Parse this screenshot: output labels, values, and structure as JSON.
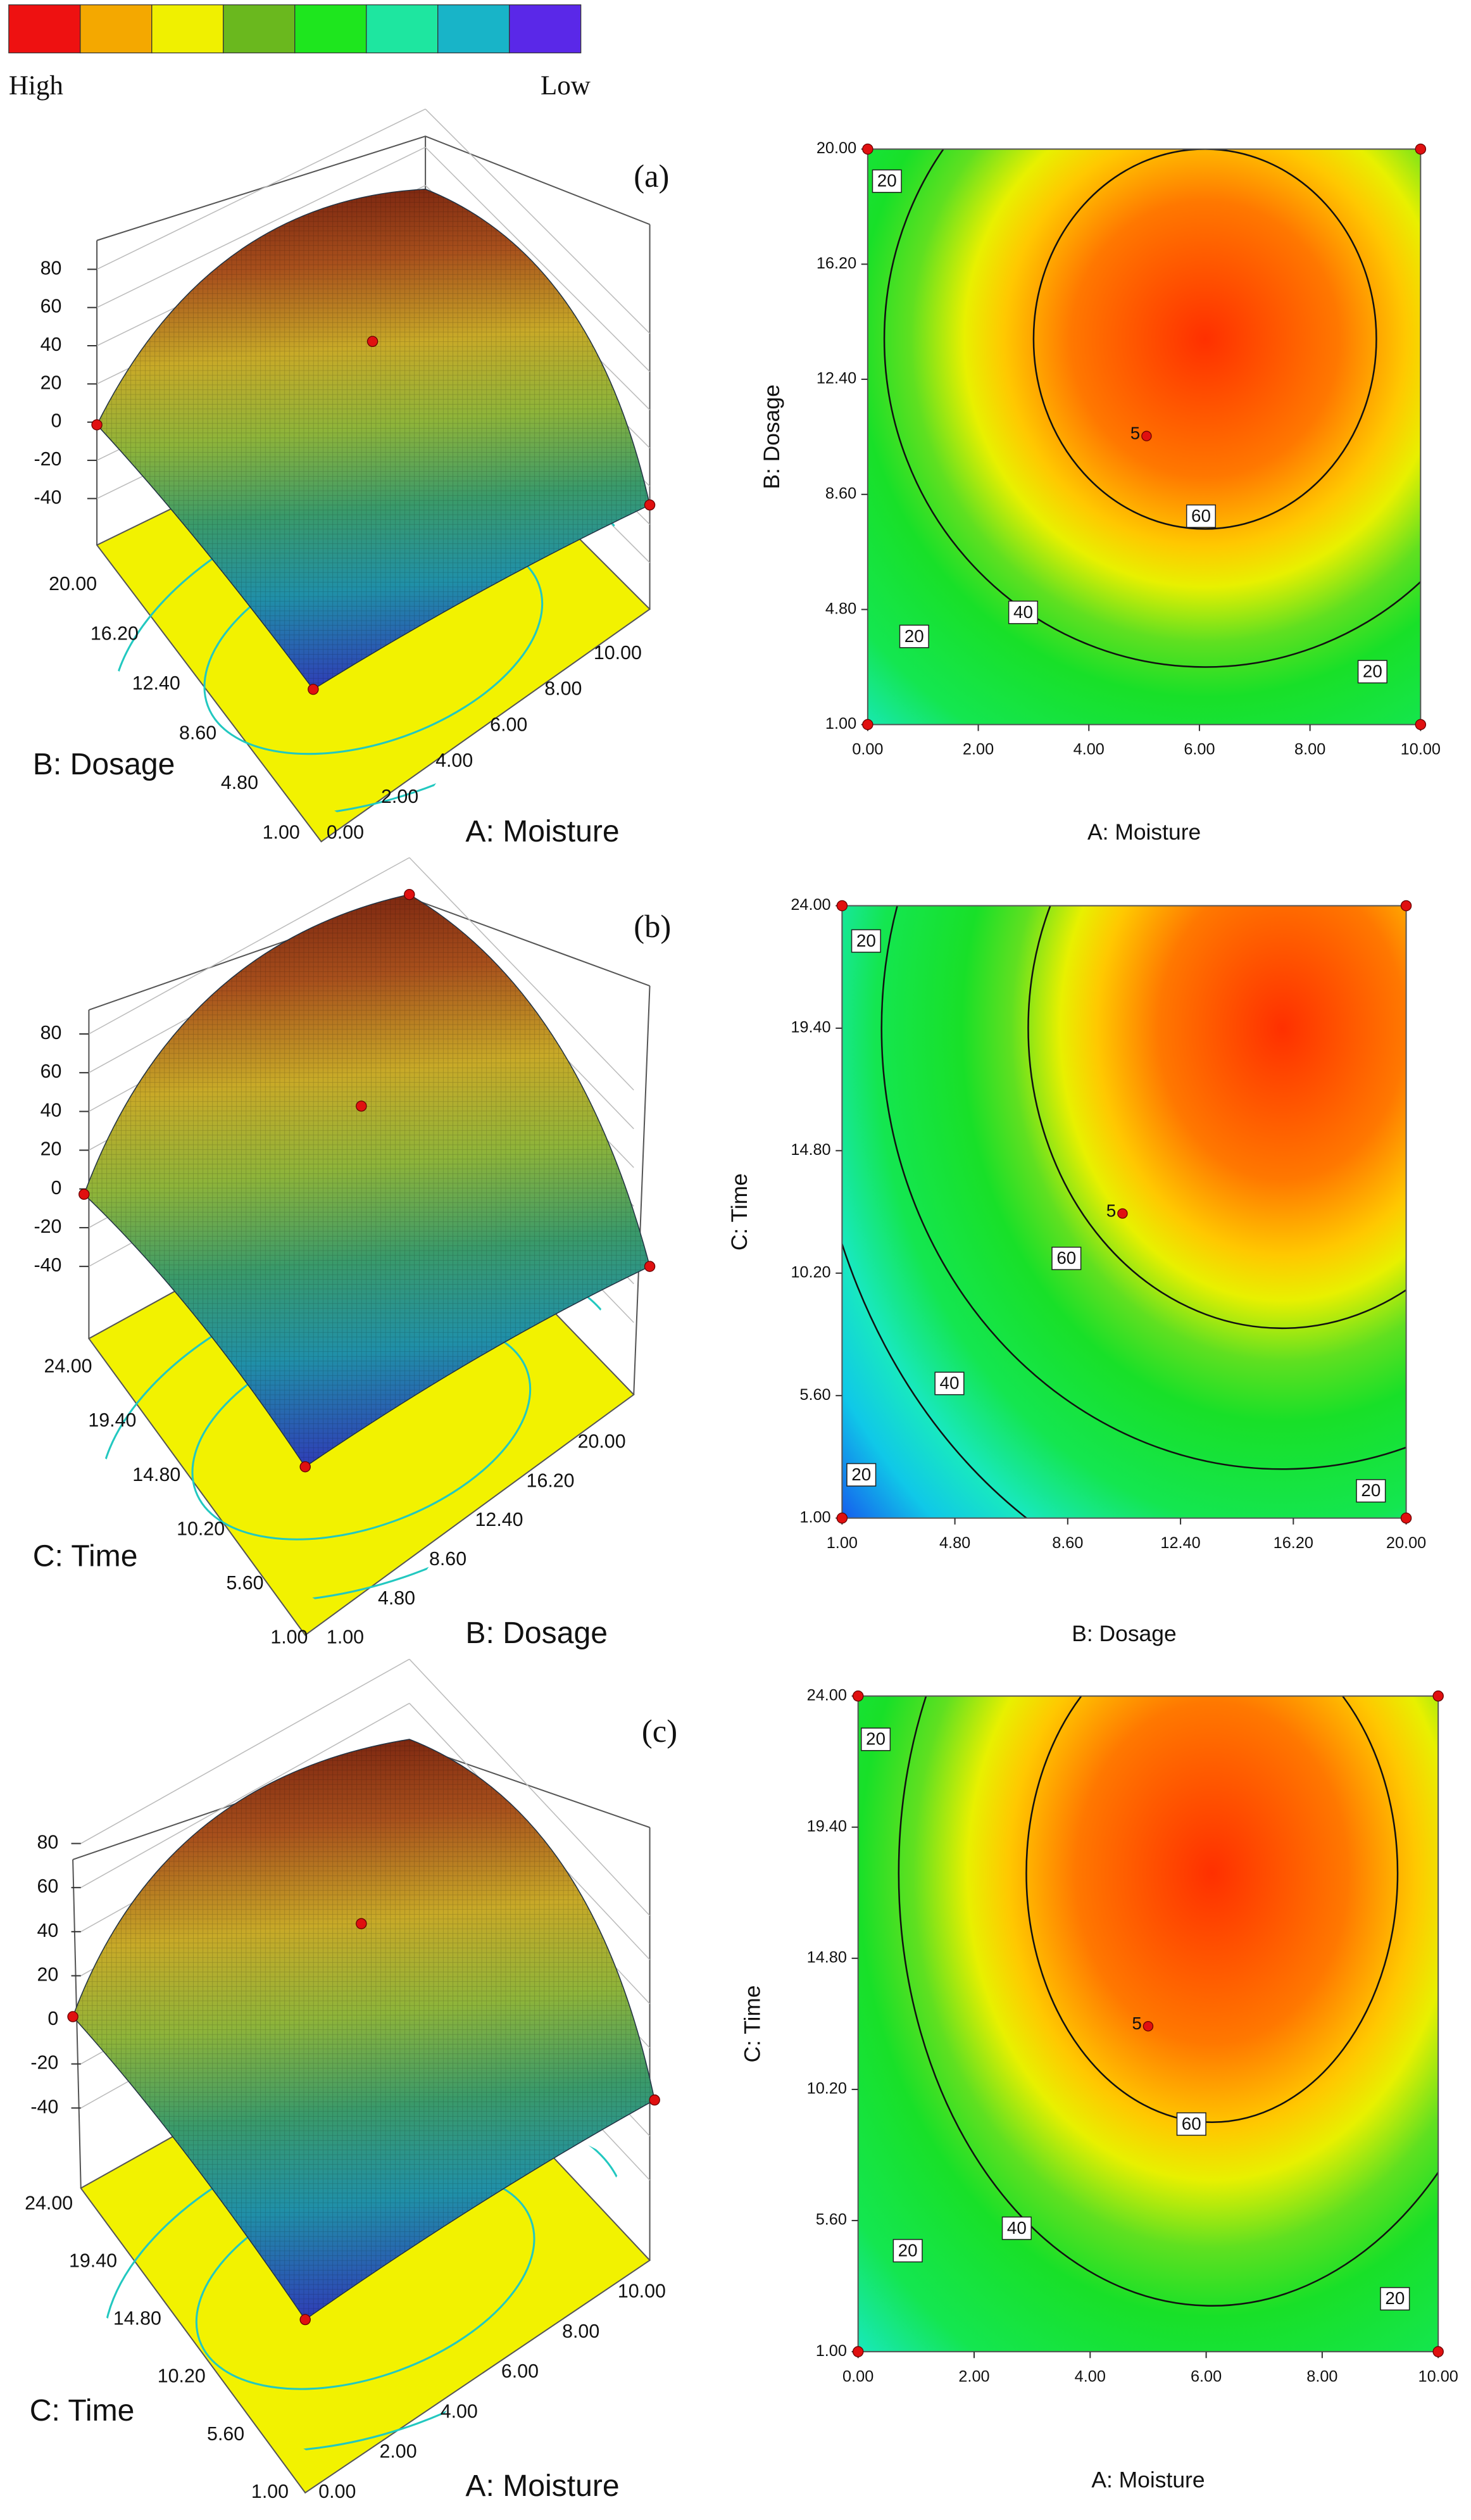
{
  "legend": {
    "high": "High",
    "low": "Low",
    "colors": [
      "#ee1111",
      "#f4a800",
      "#f0f000",
      "#6ab81e",
      "#1ee61e",
      "#1ee6a0",
      "#18b4c8",
      "#5a28e8"
    ]
  },
  "chart_data": [
    {
      "type": "surface",
      "label": "(a)",
      "xlabel": "A: Moisture",
      "ylabel": "B: Dosage",
      "xlim": [
        0,
        10
      ],
      "ylim": [
        1,
        20
      ],
      "zlim": [
        -40,
        80
      ],
      "xticks": [
        {
          "value": 0,
          "label": "0.00"
        },
        {
          "value": 2,
          "label": "2.00"
        },
        {
          "value": 4,
          "label": "4.00"
        },
        {
          "value": 6,
          "label": "6.00"
        },
        {
          "value": 8,
          "label": "8.00"
        },
        {
          "value": 10,
          "label": "10.00"
        }
      ],
      "yticks": [
        {
          "value": 1,
          "label": "1.00"
        },
        {
          "value": 4.8,
          "label": "4.80"
        },
        {
          "value": 8.6,
          "label": "8.60"
        },
        {
          "value": 12.4,
          "label": "12.40"
        },
        {
          "value": 16.2,
          "label": "16.20"
        },
        {
          "value": 20,
          "label": "20.00"
        }
      ],
      "zticks": [
        80,
        60,
        40,
        20,
        0,
        -20,
        -40
      ]
    },
    {
      "type": "contour",
      "xlabel": "A: Moisture",
      "ylabel": "B: Dosage",
      "xlim": [
        0,
        10
      ],
      "ylim": [
        1,
        20
      ],
      "xticks": [
        {
          "value": 0,
          "label": "0.00"
        },
        {
          "value": 2,
          "label": "2.00"
        },
        {
          "value": 4,
          "label": "4.00"
        },
        {
          "value": 6,
          "label": "6.00"
        },
        {
          "value": 8,
          "label": "8.00"
        },
        {
          "value": 10,
          "label": "10.00"
        }
      ],
      "yticks": [
        {
          "value": 1,
          "label": "1.00"
        },
        {
          "value": 4.8,
          "label": "4.80"
        },
        {
          "value": 8.6,
          "label": "8.60"
        },
        {
          "value": 12.4,
          "label": "12.40"
        },
        {
          "value": 16.2,
          "label": "16.20"
        },
        {
          "value": 20,
          "label": "20.00"
        }
      ],
      "levels": [
        20,
        40,
        60
      ],
      "contour_labels": [
        20,
        20,
        40,
        60,
        20
      ],
      "point_label": 5
    },
    {
      "type": "surface",
      "label": "(b)",
      "xlabel": "B: Dosage",
      "ylabel": "C: Time",
      "xlim": [
        1,
        20
      ],
      "ylim": [
        1,
        24
      ],
      "zlim": [
        -40,
        80
      ],
      "xticks": [
        {
          "value": 1,
          "label": "1.00"
        },
        {
          "value": 4.8,
          "label": "4.80"
        },
        {
          "value": 8.6,
          "label": "8.60"
        },
        {
          "value": 12.4,
          "label": "12.40"
        },
        {
          "value": 16.2,
          "label": "16.20"
        },
        {
          "value": 20,
          "label": "20.00"
        }
      ],
      "yticks": [
        {
          "value": 1,
          "label": "1.00"
        },
        {
          "value": 5.6,
          "label": "5.60"
        },
        {
          "value": 10.2,
          "label": "10.20"
        },
        {
          "value": 14.8,
          "label": "14.80"
        },
        {
          "value": 19.4,
          "label": "19.40"
        },
        {
          "value": 24,
          "label": "24.00"
        }
      ],
      "zticks": [
        80,
        60,
        40,
        20,
        0,
        -20,
        -40
      ]
    },
    {
      "type": "contour",
      "xlabel": "B: Dosage",
      "ylabel": "C: Time",
      "xlim": [
        1,
        20
      ],
      "ylim": [
        1,
        24
      ],
      "xticks": [
        {
          "value": 1,
          "label": "1.00"
        },
        {
          "value": 4.8,
          "label": "4.80"
        },
        {
          "value": 8.6,
          "label": "8.60"
        },
        {
          "value": 12.4,
          "label": "12.40"
        },
        {
          "value": 16.2,
          "label": "16.20"
        },
        {
          "value": 20,
          "label": "20.00"
        }
      ],
      "yticks": [
        {
          "value": 1,
          "label": "1.00"
        },
        {
          "value": 5.6,
          "label": "5.60"
        },
        {
          "value": 10.2,
          "label": "10.20"
        },
        {
          "value": 14.8,
          "label": "14.80"
        },
        {
          "value": 19.4,
          "label": "19.40"
        },
        {
          "value": 24,
          "label": "24.00"
        }
      ],
      "levels": [
        20,
        40,
        60
      ],
      "contour_labels": [
        20,
        20,
        40,
        60,
        20
      ],
      "point_label": 5
    },
    {
      "type": "surface",
      "label": "(c)",
      "xlabel": "A: Moisture",
      "ylabel": "C: Time",
      "xlim": [
        0,
        10
      ],
      "ylim": [
        1,
        24
      ],
      "zlim": [
        -40,
        80
      ],
      "xticks": [
        {
          "value": 0,
          "label": "0.00"
        },
        {
          "value": 2,
          "label": "2.00"
        },
        {
          "value": 4,
          "label": "4.00"
        },
        {
          "value": 6,
          "label": "6.00"
        },
        {
          "value": 8,
          "label": "8.00"
        },
        {
          "value": 10,
          "label": "10.00"
        }
      ],
      "yticks": [
        {
          "value": 1,
          "label": "1.00"
        },
        {
          "value": 5.6,
          "label": "5.60"
        },
        {
          "value": 10.2,
          "label": "10.20"
        },
        {
          "value": 14.8,
          "label": "14.80"
        },
        {
          "value": 19.4,
          "label": "19.40"
        },
        {
          "value": 24,
          "label": "24.00"
        }
      ],
      "zticks": [
        80,
        60,
        40,
        20,
        0,
        -20,
        -40
      ]
    },
    {
      "type": "contour",
      "xlabel": "A: Moisture",
      "ylabel": "C: Time",
      "xlim": [
        0,
        10
      ],
      "ylim": [
        1,
        24
      ],
      "xticks": [
        {
          "value": 0,
          "label": "0.00"
        },
        {
          "value": 2,
          "label": "2.00"
        },
        {
          "value": 4,
          "label": "4.00"
        },
        {
          "value": 6,
          "label": "6.00"
        },
        {
          "value": 8,
          "label": "8.00"
        },
        {
          "value": 10,
          "label": "10.00"
        }
      ],
      "yticks": [
        {
          "value": 1,
          "label": "1.00"
        },
        {
          "value": 5.6,
          "label": "5.60"
        },
        {
          "value": 10.2,
          "label": "10.20"
        },
        {
          "value": 14.8,
          "label": "14.80"
        },
        {
          "value": 19.4,
          "label": "19.40"
        },
        {
          "value": 24,
          "label": "24.00"
        }
      ],
      "levels": [
        20,
        40,
        60
      ],
      "contour_labels": [
        20,
        20,
        40,
        60,
        20
      ],
      "point_label": 5
    }
  ]
}
